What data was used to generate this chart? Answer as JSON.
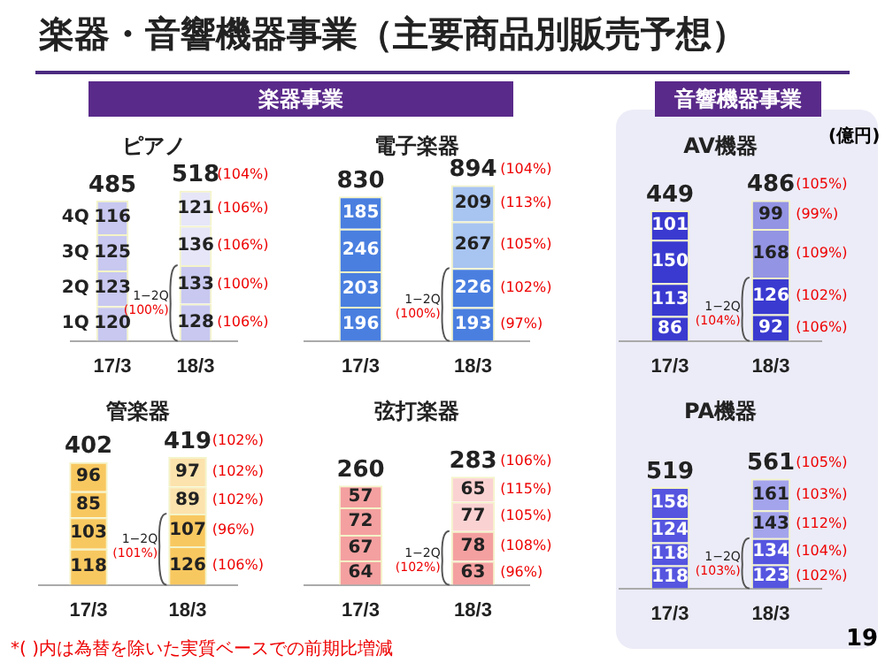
{
  "chart_data": [
    {
      "type": "bar",
      "stacked": true,
      "title": "ピアノ",
      "categories": [
        "17/3",
        "18/3"
      ],
      "tick_labels": "x",
      "data_labels": true,
      "totals": [
        "485",
        "518"
      ],
      "series": [
        {
          "name": "1Q",
          "colors": [
            "#c8c8f0",
            "#c8c8f0"
          ],
          "values": [
            120,
            128
          ]
        },
        {
          "name": "2Q",
          "colors": [
            "#c8c8f0",
            "#c8c8f0"
          ],
          "values": [
            123,
            133
          ]
        },
        {
          "name": "3Q",
          "colors": [
            "#c8c8f0",
            "#e6e6f8"
          ],
          "values": [
            125,
            136
          ]
        },
        {
          "name": "4Q",
          "colors": [
            "#c8c8f0",
            "#e6e6f8"
          ],
          "values": [
            116,
            121
          ]
        }
      ],
      "annotations": [
        "楽器・音響機器事業（主要商品別販売予想）",
        "楽器事業",
        "(104%)",
        "(106%)",
        "(106%)",
        "(100%)",
        "(106%)",
        "1−2Q\n(100%)"
      ]
    },
    {
      "type": "bar",
      "stacked": true,
      "title": "電子楽器",
      "categories": [
        "17/3",
        "18/3"
      ],
      "tick_labels": "x",
      "data_labels": true,
      "totals": [
        "830",
        "894"
      ],
      "series": [
        {
          "colors": [
            "#4a7fe0",
            "#4a7fe0"
          ],
          "values": [
            196,
            193
          ]
        },
        {
          "colors": [
            "#4a7fe0",
            "#4a7fe0"
          ],
          "values": [
            203,
            226
          ]
        },
        {
          "colors": [
            "#4a7fe0",
            "#a8c4f0"
          ],
          "values": [
            246,
            267
          ]
        },
        {
          "colors": [
            "#4a7fe0",
            "#a8c4f0"
          ],
          "values": [
            185,
            209
          ]
        }
      ],
      "annotations": [
        "(104%)",
        "(113%)",
        "(105%)",
        "(102%)",
        "(97%)",
        "1−2Q\n(100%)"
      ]
    },
    {
      "type": "bar",
      "stacked": true,
      "title": "管楽器",
      "categories": [
        "17/3",
        "18/3"
      ],
      "tick_labels": "x",
      "data_labels": true,
      "totals": [
        "402",
        "419"
      ],
      "series": [
        {
          "colors": [
            "#f8c860",
            "#f8c860"
          ],
          "values": [
            118,
            126
          ]
        },
        {
          "colors": [
            "#f8c860",
            "#f8c860"
          ],
          "values": [
            103,
            107
          ]
        },
        {
          "colors": [
            "#f8c860",
            "#fce2ac"
          ],
          "values": [
            85,
            89
          ]
        },
        {
          "colors": [
            "#f8c860",
            "#fce2ac"
          ],
          "values": [
            96,
            97
          ]
        }
      ],
      "annotations": [
        "*( )内は為替を除いた実質ベースでの前期比増減",
        "(102%)",
        "(102%)",
        "(102%)",
        "(96%)",
        "(106%)",
        "1−2Q\n(101%)"
      ]
    },
    {
      "type": "bar",
      "stacked": true,
      "title": "弦打楽器",
      "categories": [
        "17/3",
        "18/3"
      ],
      "tick_labels": "x",
      "data_labels": true,
      "totals": [
        "260",
        "283"
      ],
      "series": [
        {
          "colors": [
            "#f4a0a0",
            "#f4a0a0"
          ],
          "values": [
            64,
            63
          ]
        },
        {
          "colors": [
            "#f4a0a0",
            "#f4a0a0"
          ],
          "values": [
            67,
            78
          ]
        },
        {
          "colors": [
            "#f4a0a0",
            "#fbd2d2"
          ],
          "values": [
            72,
            77
          ]
        },
        {
          "colors": [
            "#f4a0a0",
            "#fbd2d2"
          ],
          "values": [
            57,
            65
          ]
        }
      ],
      "annotations": [
        "(106%)",
        "(115%)",
        "(105%)",
        "(108%)",
        "(96%)",
        "1−2Q\n(102%)"
      ]
    },
    {
      "type": "bar",
      "stacked": true,
      "title": "AV機器",
      "categories": [
        "17/3",
        "18/3"
      ],
      "tick_labels": "x",
      "data_labels": true,
      "totals": [
        "449",
        "486"
      ],
      "series": [
        {
          "colors": [
            "#3a3ad0",
            "#3a3ad0"
          ],
          "values": [
            86,
            92
          ]
        },
        {
          "colors": [
            "#3a3ad0",
            "#3a3ad0"
          ],
          "values": [
            113,
            126
          ]
        },
        {
          "colors": [
            "#3a3ad0",
            "#9494e4"
          ],
          "values": [
            150,
            168
          ]
        },
        {
          "colors": [
            "#3a3ad0",
            "#9494e4"
          ],
          "values": [
            101,
            99
          ]
        }
      ],
      "annotations": [
        "音響機器事業",
        "(億円)",
        "(105%)",
        "(99%)",
        "(109%)",
        "(102%)",
        "(106%)",
        "1−2Q\n(104%)"
      ]
    },
    {
      "type": "bar",
      "stacked": true,
      "title": "PA機器",
      "categories": [
        "17/3",
        "18/3"
      ],
      "tick_labels": "x",
      "data_labels": true,
      "totals": [
        "519",
        "561"
      ],
      "series": [
        {
          "colors": [
            "#5555e0",
            "#5555e0"
          ],
          "values": [
            118,
            123
          ]
        },
        {
          "colors": [
            "#5555e0",
            "#5555e0"
          ],
          "values": [
            118,
            134
          ]
        },
        {
          "colors": [
            "#5555e0",
            "#a4a4ec"
          ],
          "values": [
            124,
            143
          ]
        },
        {
          "colors": [
            "#5555e0",
            "#a4a4ec"
          ],
          "values": [
            158,
            161
          ]
        }
      ],
      "annotations": [
        "19",
        "(105%)",
        "(103%)",
        "(112%)",
        "(104%)",
        "(102%)",
        "1−2Q\n(103%)"
      ]
    }
  ]
}
